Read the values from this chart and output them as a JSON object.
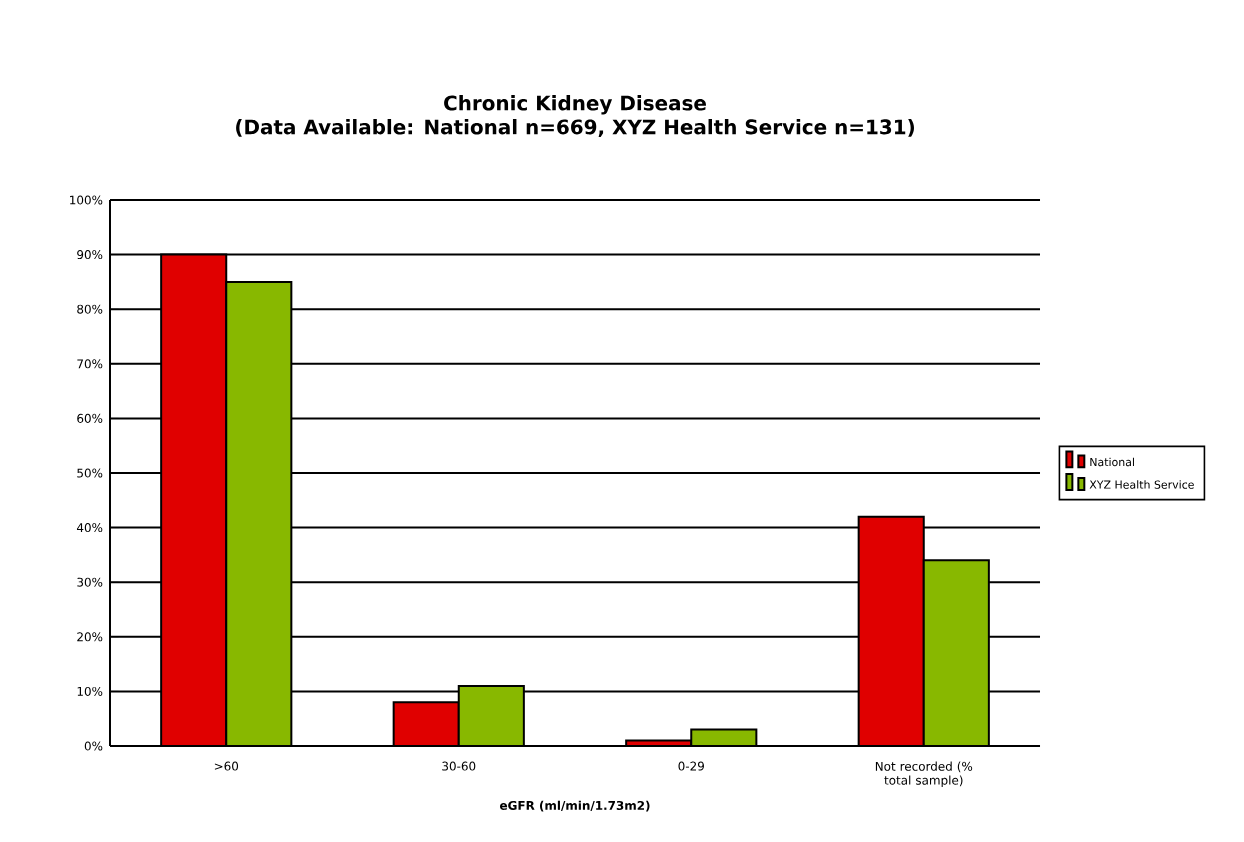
{
  "chart_data": {
    "type": "bar",
    "title": "Chronic Kidney Disease",
    "subtitle": "(Data Available: National n=669, XYZ Health Service n=131)",
    "xlabel": "eGFR (ml/min/1.73m2)",
    "categories": [
      ">60",
      "30-60",
      "0-29",
      "Not recorded (% total sample)"
    ],
    "series": [
      {
        "name": "National",
        "color": "#e00000",
        "values": [
          90,
          8,
          1,
          42
        ]
      },
      {
        "name": "XYZ Health Service",
        "color": "#88b800",
        "values": [
          85,
          11,
          3,
          34
        ]
      }
    ],
    "ylim": [
      0,
      100
    ],
    "yticks": [
      {
        "value": 0,
        "label": "0%"
      },
      {
        "value": 10,
        "label": "10%"
      },
      {
        "value": 20,
        "label": "20%"
      },
      {
        "value": 30,
        "label": "30%"
      },
      {
        "value": 40,
        "label": "40%"
      },
      {
        "value": 50,
        "label": "50%"
      },
      {
        "value": 60,
        "label": "60%"
      },
      {
        "value": 70,
        "label": "70%"
      },
      {
        "value": 80,
        "label": "80%"
      },
      {
        "value": 90,
        "label": "90%"
      },
      {
        "value": 100,
        "label": "100%"
      }
    ],
    "grid": "y",
    "legend": "right"
  }
}
